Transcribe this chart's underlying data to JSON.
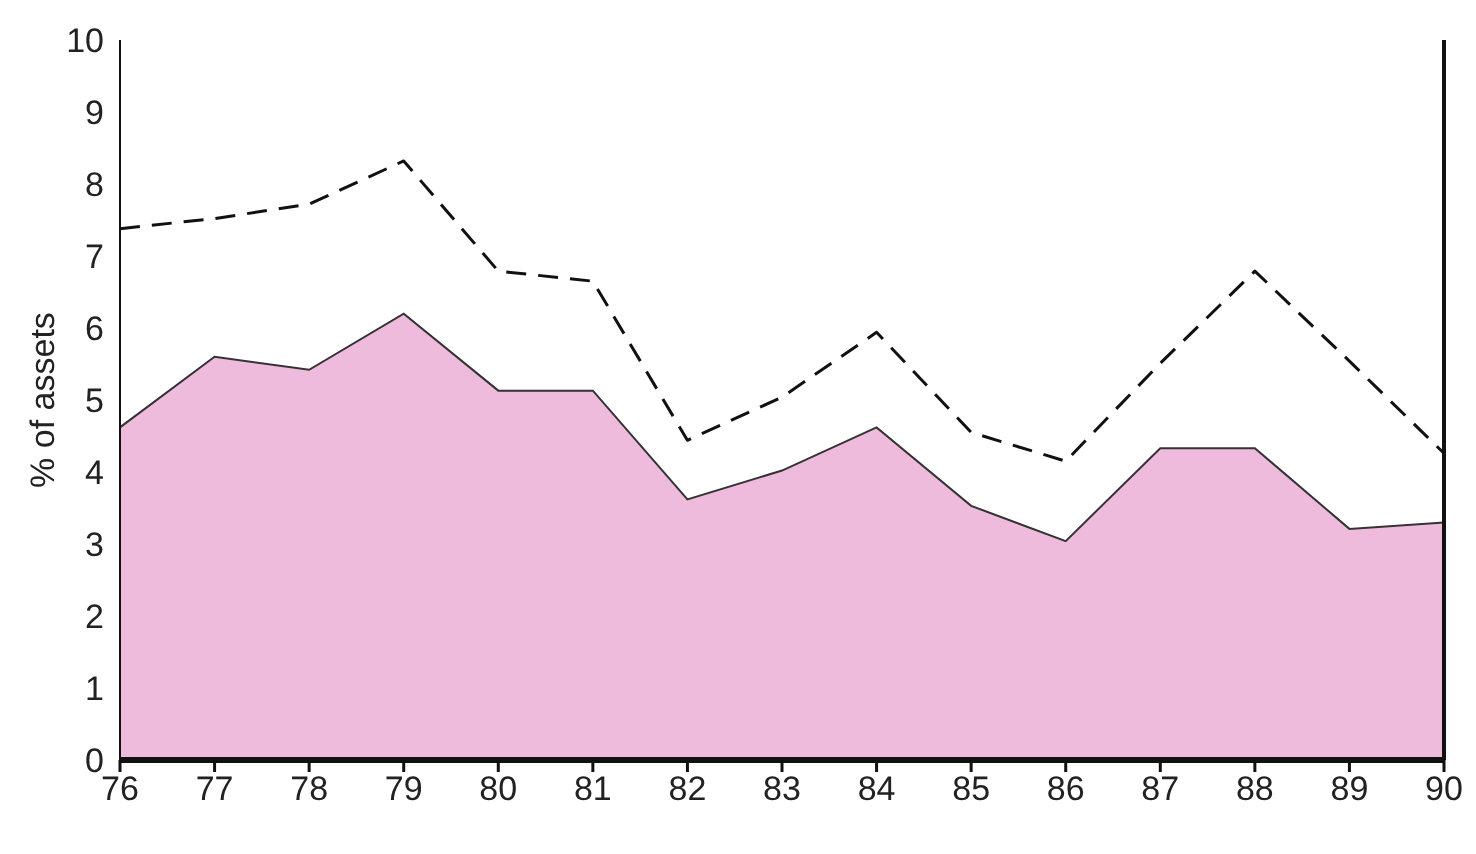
{
  "chart_data": {
    "type": "area",
    "ylabel": "% of assets",
    "x": [
      76,
      77,
      78,
      79,
      80,
      81,
      82,
      83,
      84,
      85,
      86,
      87,
      88,
      89,
      90
    ],
    "xlim": [
      76,
      90
    ],
    "xticks": [
      76,
      77,
      78,
      79,
      80,
      81,
      82,
      83,
      84,
      85,
      86,
      87,
      88,
      89,
      90
    ],
    "ylim": [
      0,
      10
    ],
    "yticks": [
      0,
      1,
      2,
      3,
      4,
      5,
      6,
      7,
      8,
      9,
      10
    ],
    "grid": false,
    "legend": false,
    "series": [
      {
        "color": "#efbbdc",
        "values": [
          4.62,
          5.6,
          5.42,
          6.2,
          5.13,
          5.13,
          3.62,
          4.02,
          4.62,
          3.53,
          3.04,
          4.33,
          4.33,
          3.21,
          3.3
        ]
      },
      {
        "type": "line",
        "color": "#111111",
        "line_style": "dashed",
        "values": [
          7.38,
          7.52,
          7.72,
          8.32,
          6.79,
          6.65,
          4.44,
          5.04,
          5.94,
          4.55,
          4.15,
          5.51,
          6.79,
          5.54,
          4.26
        ]
      }
    ]
  }
}
